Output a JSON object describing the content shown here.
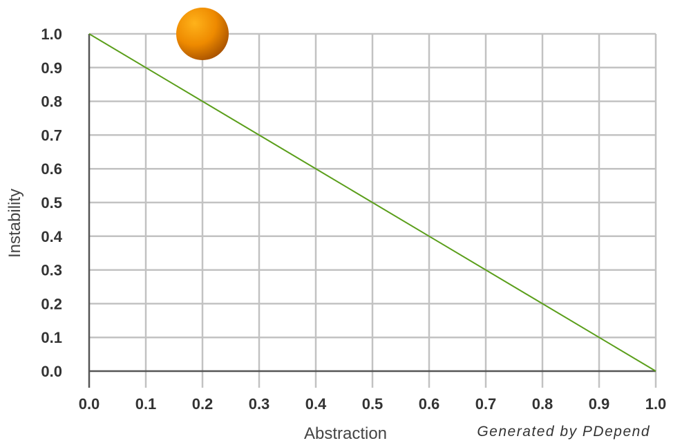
{
  "chart_data": {
    "type": "scatter",
    "xlabel": "Abstraction",
    "ylabel": "Instability",
    "xlim": [
      0,
      1
    ],
    "ylim": [
      0,
      1
    ],
    "x_ticks": [
      "0.0",
      "0.1",
      "0.2",
      "0.3",
      "0.4",
      "0.5",
      "0.6",
      "0.7",
      "0.8",
      "0.9",
      "1.0"
    ],
    "y_ticks": [
      "0.0",
      "0.1",
      "0.2",
      "0.3",
      "0.4",
      "0.5",
      "0.6",
      "0.7",
      "0.8",
      "0.9",
      "1.0"
    ],
    "grid": true,
    "main_sequence": {
      "from": [
        0,
        1
      ],
      "to": [
        1,
        0
      ],
      "color": "#5a9e1a"
    },
    "points": [
      {
        "x": 0.2,
        "y": 1.0,
        "color": "#f28a00"
      }
    ]
  },
  "credit": "Generated by PDepend"
}
